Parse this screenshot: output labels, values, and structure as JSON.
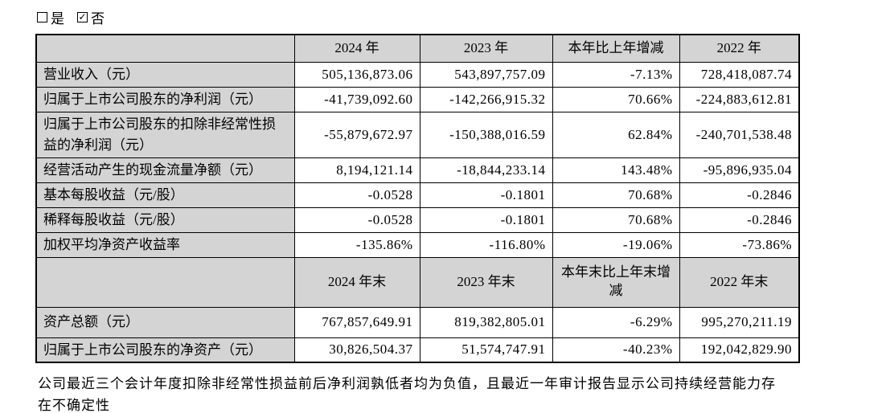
{
  "checkbox_row": {
    "yes": {
      "label": "是",
      "checked": false
    },
    "no": {
      "label": "否",
      "checked": true
    }
  },
  "icons": {
    "check": "✓"
  },
  "colors": {
    "header_bg": "#d4d4d4",
    "border": "#000000",
    "text": "#000000"
  },
  "table": {
    "header_annual": {
      "col_2024": "2024 年",
      "col_2023": "2023 年",
      "col_change": "本年比上年增减",
      "col_2022": "2022 年"
    },
    "annual_rows": [
      {
        "label": "营业收入（元）",
        "y2024": "505,136,873.06",
        "y2023": "543,897,757.09",
        "change": "-7.13%",
        "y2022": "728,418,087.74"
      },
      {
        "label": "归属于上市公司股东的净利润（元）",
        "y2024": "-41,739,092.60",
        "y2023": "-142,266,915.32",
        "change": "70.66%",
        "y2022": "-224,883,612.81"
      },
      {
        "label": "归属于上市公司股东的扣除非经常性损益的净利润（元）",
        "y2024": "-55,879,672.97",
        "y2023": "-150,388,016.59",
        "change": "62.84%",
        "y2022": "-240,701,538.48"
      },
      {
        "label": "经营活动产生的现金流量净额（元）",
        "y2024": "8,194,121.14",
        "y2023": "-18,844,233.14",
        "change": "143.48%",
        "y2022": "-95,896,935.04"
      },
      {
        "label": "基本每股收益（元/股）",
        "y2024": "-0.0528",
        "y2023": "-0.1801",
        "change": "70.68%",
        "y2022": "-0.2846"
      },
      {
        "label": "稀释每股收益（元/股）",
        "y2024": "-0.0528",
        "y2023": "-0.1801",
        "change": "70.68%",
        "y2022": "-0.2846"
      },
      {
        "label": "加权平均净资产收益率",
        "y2024": "-135.86%",
        "y2023": "-116.80%",
        "change": "-19.06%",
        "y2022": "-73.86%"
      }
    ],
    "header_eoy": {
      "col_2024": "2024 年末",
      "col_2023": "2023 年末",
      "col_change": "本年末比上年末增减",
      "col_2022": "2022 年末"
    },
    "eoy_rows": [
      {
        "label": "资产总额（元）",
        "y2024": "767,857,649.91",
        "y2023": "819,382,805.01",
        "change": "-6.29%",
        "y2022": "995,270,211.19"
      },
      {
        "label": "归属于上市公司股东的净资产（元）",
        "y2024": "30,826,504.37",
        "y2023": "51,574,747.91",
        "change": "-40.23%",
        "y2022": "192,042,829.90"
      }
    ]
  },
  "footer_note": "公司最近三个会计年度扣除非经常性损益前后净利润孰低者均为负值，且最近一年审计报告显示公司持续经营能力存在不确定性"
}
